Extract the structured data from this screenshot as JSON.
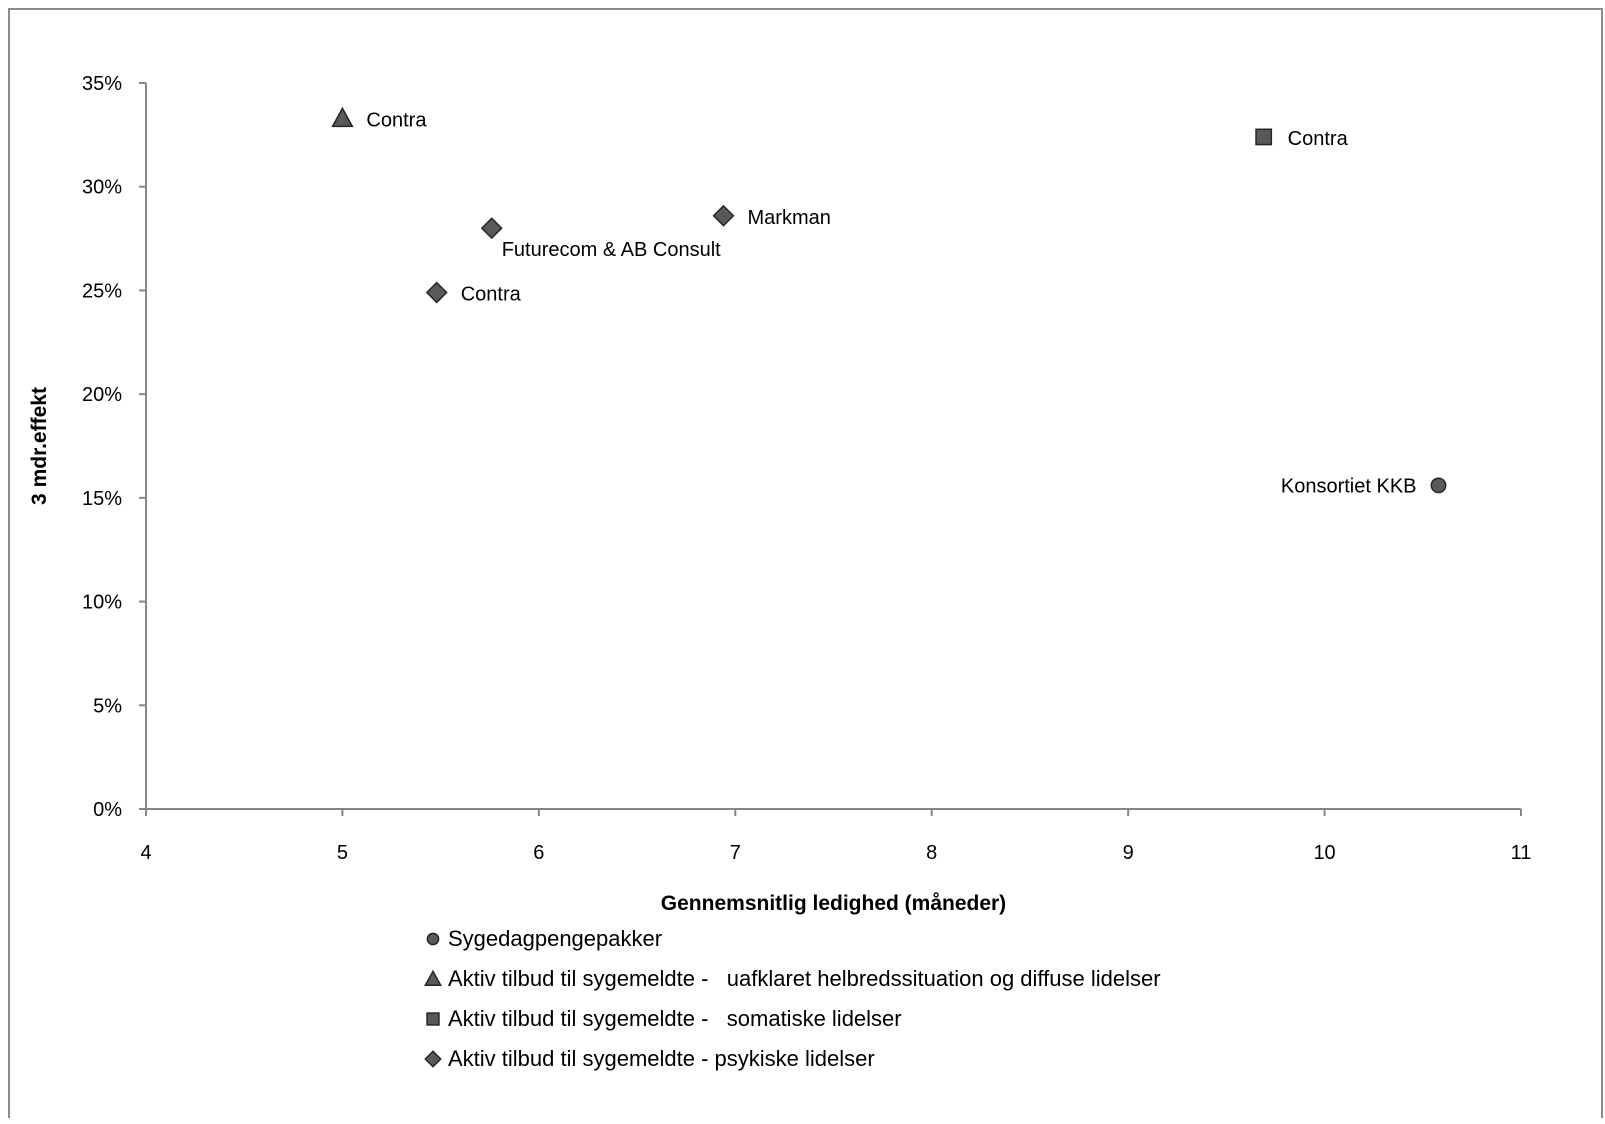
{
  "chart_data": {
    "type": "scatter",
    "title": "",
    "xlabel": "Gennemsnitlig ledighed (måneder)",
    "ylabel": "3 mdr.effekt",
    "xlim": [
      4,
      11
    ],
    "ylim": [
      0,
      0.35
    ],
    "x_ticks": [
      4,
      5,
      6,
      7,
      8,
      9,
      10,
      11
    ],
    "x_tick_labels": [
      "4",
      "5",
      "6",
      "7",
      "8",
      "9",
      "10",
      "11"
    ],
    "y_ticks": [
      0,
      0.05,
      0.1,
      0.15,
      0.2,
      0.25,
      0.3,
      0.35
    ],
    "y_tick_labels": [
      "0%",
      "5%",
      "10%",
      "15%",
      "20%",
      "25%",
      "30%",
      "35%"
    ],
    "grid": false,
    "legend_position": "bottom",
    "colors": {
      "marker_fill": "#595959",
      "marker_stroke": "#262626",
      "axis": "#868686",
      "frame": "#8c8c8c"
    },
    "series": [
      {
        "name": "Sygedagpengepakker",
        "marker": "circle",
        "points": [
          {
            "x": 10.58,
            "y": 0.156,
            "label": "Konsortiet KKB",
            "label_side": "left"
          }
        ]
      },
      {
        "name": "Aktiv tilbud til sygemeldte -   uafklaret helbredssituation og diffuse lidelser",
        "marker": "triangle",
        "points": [
          {
            "x": 5.0,
            "y": 0.333,
            "label": "Contra",
            "label_side": "right"
          }
        ]
      },
      {
        "name": "Aktiv tilbud til sygemeldte -   somatiske lidelser",
        "marker": "square",
        "points": [
          {
            "x": 9.69,
            "y": 0.324,
            "label": "Contra",
            "label_side": "right"
          }
        ]
      },
      {
        "name": "Aktiv tilbud til sygemeldte - psykiske lidelser",
        "marker": "diamond",
        "points": [
          {
            "x": 5.76,
            "y": 0.28,
            "label": "Futurecom & AB Consult",
            "label_side": "below-right"
          },
          {
            "x": 6.94,
            "y": 0.286,
            "label": "Markman",
            "label_side": "right"
          },
          {
            "x": 5.48,
            "y": 0.249,
            "label": "Contra",
            "label_side": "right"
          }
        ]
      }
    ]
  }
}
